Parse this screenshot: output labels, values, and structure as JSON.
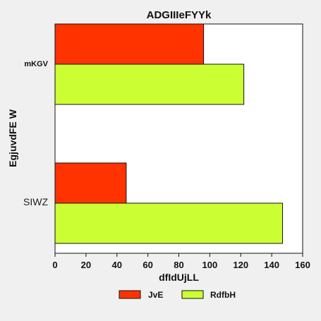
{
  "chart_data": {
    "type": "bar",
    "orientation": "horizontal",
    "title": "ADGIIIeFYYk",
    "xlabel": "dfIdUjLL",
    "ylabel": "EgjuvdFE W",
    "xlim": [
      0,
      160
    ],
    "xticks": [
      0,
      20,
      40,
      60,
      80,
      100,
      120,
      140,
      160
    ],
    "categories": [
      "mKGV",
      "SIWZ"
    ],
    "series": [
      {
        "name": "JvE",
        "color": "#ff3300",
        "values": [
          96,
          46
        ]
      },
      {
        "name": "RdfbH",
        "color": "#ccff33",
        "values": [
          122,
          147
        ]
      }
    ],
    "grid": false,
    "legend_position": "bottom"
  }
}
